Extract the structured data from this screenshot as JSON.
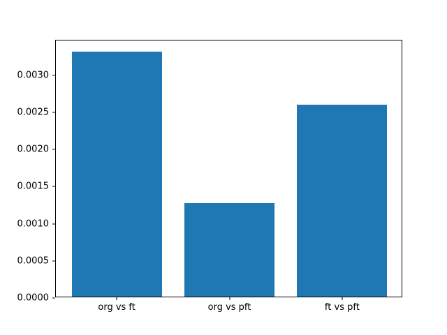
{
  "chart_data": {
    "type": "bar",
    "title": "",
    "xlabel": "",
    "ylabel": "",
    "categories": [
      "org vs ft",
      "org vs pft",
      "ft vs pft"
    ],
    "values": [
      0.0033,
      0.00126,
      0.00258
    ],
    "bar_color": "#1f77b4",
    "bar_width_frac": 0.8,
    "ytick_labels": [
      "0.0000",
      "0.0005",
      "0.0010",
      "0.0015",
      "0.0020",
      "0.0025",
      "0.0030"
    ],
    "ytick_values": [
      0.0,
      0.0005,
      0.001,
      0.0015,
      0.002,
      0.0025,
      0.003
    ],
    "ylim": [
      0.0,
      0.003465
    ],
    "grid": false,
    "legend": null,
    "frame_color": "#000000",
    "background_color": "#ffffff",
    "text_color": "#000000"
  }
}
